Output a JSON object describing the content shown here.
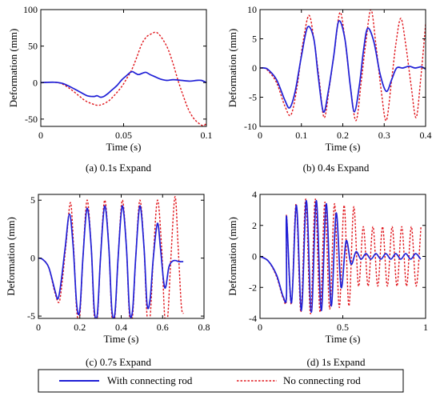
{
  "legend": [
    {
      "label": "With connecting rod",
      "color": "#1f1fd6",
      "dash": "solid"
    },
    {
      "label": "No connecting rod",
      "color": "#e0141a",
      "dash": "dotted"
    }
  ],
  "chart_data": [
    {
      "type": "line",
      "caption": "(a)  0.1s Expand",
      "xlabel": "Time (s)",
      "ylabel": "Deformation (mm)",
      "xlim": [
        0,
        0.1
      ],
      "ylim": [
        -60,
        100
      ],
      "xticks": [
        0,
        0.05,
        0.1
      ],
      "yticks": [
        -50,
        0,
        50,
        100
      ],
      "xtick_labels": [
        "0",
        "0.05",
        "0.1"
      ],
      "ytick_labels": [
        "-50",
        "0",
        "50",
        "100"
      ],
      "series": [
        {
          "key": "with",
          "points": [
            [
              0,
              0
            ],
            [
              0.008,
              0.5
            ],
            [
              0.013,
              -1
            ],
            [
              0.018,
              -6
            ],
            [
              0.023,
              -12
            ],
            [
              0.028,
              -18
            ],
            [
              0.032,
              -19
            ],
            [
              0.034,
              -18
            ],
            [
              0.036,
              -20
            ],
            [
              0.038,
              -19
            ],
            [
              0.04,
              -16
            ],
            [
              0.043,
              -10
            ],
            [
              0.046,
              -4
            ],
            [
              0.049,
              4
            ],
            [
              0.052,
              10
            ],
            [
              0.054,
              14
            ],
            [
              0.0555,
              15
            ],
            [
              0.057,
              13
            ],
            [
              0.059,
              11
            ],
            [
              0.0615,
              13
            ],
            [
              0.0635,
              14
            ],
            [
              0.066,
              11
            ],
            [
              0.069,
              8
            ],
            [
              0.072,
              5
            ],
            [
              0.076,
              3
            ],
            [
              0.08,
              4
            ],
            [
              0.085,
              3
            ],
            [
              0.09,
              2
            ],
            [
              0.094,
              3
            ],
            [
              0.097,
              3
            ],
            [
              0.1,
              0
            ]
          ]
        },
        {
          "key": "without",
          "points": [
            [
              0,
              0
            ],
            [
              0.008,
              0.5
            ],
            [
              0.013,
              -2
            ],
            [
              0.018,
              -9
            ],
            [
              0.023,
              -18
            ],
            [
              0.027,
              -25
            ],
            [
              0.031,
              -29
            ],
            [
              0.034,
              -31
            ],
            [
              0.037,
              -30
            ],
            [
              0.041,
              -25
            ],
            [
              0.045,
              -16
            ],
            [
              0.049,
              -5
            ],
            [
              0.052,
              6
            ],
            [
              0.055,
              18
            ],
            [
              0.058,
              35
            ],
            [
              0.061,
              53
            ],
            [
              0.064,
              63
            ],
            [
              0.067,
              67
            ],
            [
              0.069,
              69
            ],
            [
              0.071,
              67
            ],
            [
              0.074,
              58
            ],
            [
              0.077,
              45
            ],
            [
              0.08,
              25
            ],
            [
              0.083,
              2
            ],
            [
              0.086,
              -18
            ],
            [
              0.089,
              -36
            ],
            [
              0.092,
              -48
            ],
            [
              0.095,
              -55
            ],
            [
              0.098,
              -59
            ],
            [
              0.1,
              -56
            ]
          ]
        }
      ]
    },
    {
      "type": "line",
      "caption": "(b)  0.4s Expand",
      "xlabel": "Time (s)",
      "ylabel": "Deformation (mm)",
      "xlim": [
        0,
        0.4
      ],
      "ylim": [
        -10,
        10
      ],
      "xticks": [
        0,
        0.1,
        0.2,
        0.3,
        0.4
      ],
      "yticks": [
        -10,
        -5,
        0,
        5,
        10
      ],
      "xtick_labels": [
        "0",
        "0.1",
        "0.2",
        "0.3",
        "0.4"
      ],
      "ytick_labels": [
        "-10",
        "-5",
        "0",
        "5",
        "10"
      ],
      "series": [
        {
          "key": "with",
          "points": [
            [
              0,
              0
            ],
            [
              0.01,
              0
            ],
            [
              0.02,
              -0.3
            ],
            [
              0.04,
              -2
            ],
            [
              0.06,
              -5.5
            ],
            [
              0.072,
              -6.8
            ],
            [
              0.085,
              -4
            ],
            [
              0.1,
              2
            ],
            [
              0.115,
              7
            ],
            [
              0.13,
              5
            ],
            [
              0.14,
              -1
            ],
            [
              0.153,
              -7.5
            ],
            [
              0.165,
              -4
            ],
            [
              0.178,
              2
            ],
            [
              0.19,
              8
            ],
            [
              0.205,
              5
            ],
            [
              0.218,
              -3
            ],
            [
              0.228,
              -7.5
            ],
            [
              0.24,
              -3
            ],
            [
              0.25,
              3
            ],
            [
              0.26,
              6.8
            ],
            [
              0.275,
              4.5
            ],
            [
              0.29,
              -1
            ],
            [
              0.305,
              -4
            ],
            [
              0.318,
              -2
            ],
            [
              0.33,
              0
            ],
            [
              0.345,
              0
            ],
            [
              0.36,
              0.3
            ],
            [
              0.375,
              0
            ],
            [
              0.39,
              0.2
            ],
            [
              0.4,
              -0.2
            ]
          ]
        },
        {
          "key": "without",
          "points": [
            [
              0,
              0
            ],
            [
              0.01,
              0
            ],
            [
              0.02,
              -0.5
            ],
            [
              0.04,
              -2.5
            ],
            [
              0.06,
              -6.5
            ],
            [
              0.075,
              -8
            ],
            [
              0.09,
              -3
            ],
            [
              0.103,
              4
            ],
            [
              0.118,
              9
            ],
            [
              0.13,
              5
            ],
            [
              0.143,
              -2
            ],
            [
              0.155,
              -8.5
            ],
            [
              0.168,
              -3
            ],
            [
              0.18,
              3
            ],
            [
              0.193,
              9.5
            ],
            [
              0.205,
              5
            ],
            [
              0.218,
              -3
            ],
            [
              0.232,
              -9
            ],
            [
              0.245,
              -2
            ],
            [
              0.255,
              4
            ],
            [
              0.268,
              10
            ],
            [
              0.28,
              4
            ],
            [
              0.293,
              -4
            ],
            [
              0.305,
              -9
            ],
            [
              0.318,
              -2
            ],
            [
              0.328,
              4
            ],
            [
              0.34,
              8.5
            ],
            [
              0.352,
              4
            ],
            [
              0.365,
              -3
            ],
            [
              0.377,
              -8.5
            ],
            [
              0.388,
              -2
            ],
            [
              0.4,
              7.5
            ]
          ]
        }
      ]
    },
    {
      "type": "line",
      "caption": "(c)  0.7s Expand",
      "xlabel": "Time (s)",
      "ylabel": "Deformation (mm)",
      "xlim": [
        0,
        0.8
      ],
      "ylim": [
        -5.2,
        5.5
      ],
      "xticks": [
        0,
        0.2,
        0.4,
        0.6,
        0.8
      ],
      "yticks": [
        -5,
        0,
        5
      ],
      "xtick_labels": [
        "0",
        "0.2",
        "0.4",
        "0.6",
        "0.8"
      ],
      "ytick_labels": [
        "-5",
        "0",
        "5"
      ],
      "series": [
        {
          "key": "with",
          "points": [
            [
              0,
              0
            ],
            [
              0.02,
              -0.1
            ],
            [
              0.05,
              -0.8
            ],
            [
              0.08,
              -2.8
            ],
            [
              0.095,
              -3.5
            ],
            [
              0.11,
              -2
            ],
            [
              0.13,
              1
            ],
            [
              0.15,
              3.8
            ],
            [
              0.168,
              1
            ],
            [
              0.185,
              -4
            ],
            [
              0.2,
              -4.5
            ],
            [
              0.215,
              0
            ],
            [
              0.235,
              4.3
            ],
            [
              0.255,
              1
            ],
            [
              0.27,
              -4.5
            ],
            [
              0.285,
              -4.8
            ],
            [
              0.3,
              0
            ],
            [
              0.32,
              4.5
            ],
            [
              0.34,
              1
            ],
            [
              0.355,
              -4.5
            ],
            [
              0.37,
              -4.7
            ],
            [
              0.385,
              0
            ],
            [
              0.405,
              4.5
            ],
            [
              0.425,
              1
            ],
            [
              0.44,
              -4.5
            ],
            [
              0.455,
              -4.5
            ],
            [
              0.47,
              0
            ],
            [
              0.49,
              4.5
            ],
            [
              0.51,
              1
            ],
            [
              0.525,
              -4
            ],
            [
              0.54,
              -3.5
            ],
            [
              0.555,
              0
            ],
            [
              0.575,
              3
            ],
            [
              0.59,
              0.8
            ],
            [
              0.605,
              -2
            ],
            [
              0.615,
              -2.5
            ],
            [
              0.63,
              -0.8
            ],
            [
              0.645,
              -0.3
            ],
            [
              0.66,
              -0.2
            ],
            [
              0.68,
              -0.3
            ],
            [
              0.7,
              -0.3
            ]
          ]
        },
        {
          "key": "without",
          "points": [
            [
              0,
              0
            ],
            [
              0.02,
              -0.1
            ],
            [
              0.05,
              -0.8
            ],
            [
              0.08,
              -3
            ],
            [
              0.1,
              -3.8
            ],
            [
              0.115,
              -2
            ],
            [
              0.135,
              1.5
            ],
            [
              0.155,
              4.8
            ],
            [
              0.17,
              1
            ],
            [
              0.185,
              -4.5
            ],
            [
              0.2,
              -5
            ],
            [
              0.215,
              0
            ],
            [
              0.235,
              5
            ],
            [
              0.255,
              1
            ],
            [
              0.27,
              -5
            ],
            [
              0.285,
              -5.1
            ],
            [
              0.3,
              0
            ],
            [
              0.32,
              5
            ],
            [
              0.34,
              1
            ],
            [
              0.355,
              -5
            ],
            [
              0.37,
              -5
            ],
            [
              0.385,
              0
            ],
            [
              0.405,
              5
            ],
            [
              0.425,
              1
            ],
            [
              0.44,
              -5
            ],
            [
              0.455,
              -5
            ],
            [
              0.47,
              0
            ],
            [
              0.49,
              5
            ],
            [
              0.51,
              1
            ],
            [
              0.525,
              -5
            ],
            [
              0.54,
              -5
            ],
            [
              0.555,
              0
            ],
            [
              0.575,
              5
            ],
            [
              0.595,
              1
            ],
            [
              0.61,
              -5
            ],
            [
              0.625,
              -5
            ],
            [
              0.64,
              0
            ],
            [
              0.66,
              5.3
            ],
            [
              0.675,
              1
            ],
            [
              0.69,
              -4
            ],
            [
              0.7,
              -4.8
            ]
          ]
        }
      ]
    },
    {
      "type": "line",
      "caption": "(d)  1s Expand",
      "xlabel": "Time (s)",
      "ylabel": "Deformation (mm)",
      "xlim": [
        0,
        1
      ],
      "ylim": [
        -4,
        4
      ],
      "xticks": [
        0,
        0.5,
        1
      ],
      "yticks": [
        -4,
        -2,
        0,
        2,
        4
      ],
      "xtick_labels": [
        "0",
        "0.5",
        "1"
      ],
      "ytick_labels": [
        "-4",
        "-2",
        "0",
        "2",
        "4"
      ],
      "series": [
        {
          "key": "with",
          "amplitudes": [
            2.6,
            3.0,
            3.3,
            3.5,
            3.6,
            3.6,
            3.6,
            3.5,
            3.4,
            3.2,
            2.8,
            2.0,
            1.0,
            0.5,
            0.3
          ],
          "start": 0.1,
          "period": 0.06,
          "ramp": [
            [
              0,
              0
            ],
            [
              0.05,
              -0.3
            ],
            [
              0.1,
              -1.2
            ],
            [
              0.14,
              -2.6
            ],
            [
              0.16,
              -2.5
            ]
          ],
          "settle": 0.0
        },
        {
          "key": "without",
          "amplitudes": [
            2.7,
            3.1,
            3.4,
            3.6,
            3.7,
            3.7,
            3.7,
            3.6,
            3.5,
            3.4,
            3.4,
            3.3,
            3.3,
            3.2,
            3.2
          ],
          "start": 0.1,
          "period": 0.058,
          "ramp": [
            [
              0,
              0
            ],
            [
              0.05,
              -0.3
            ],
            [
              0.1,
              -1.3
            ],
            [
              0.14,
              -2.7
            ],
            [
              0.16,
              -2.6
            ]
          ],
          "settle": 0.0
        }
      ]
    }
  ]
}
